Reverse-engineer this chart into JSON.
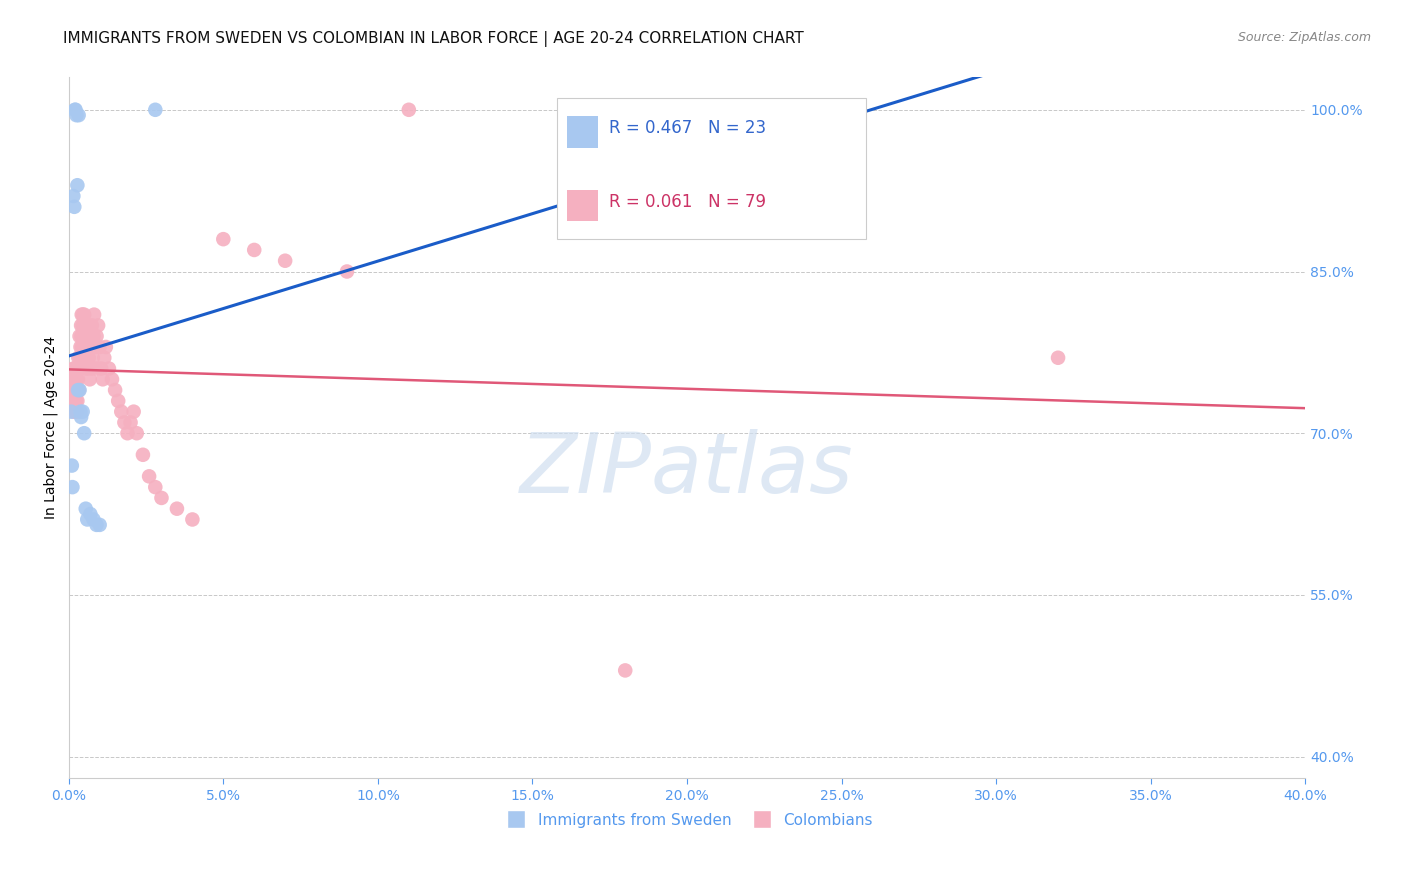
{
  "title": "IMMIGRANTS FROM SWEDEN VS COLOMBIAN IN LABOR FORCE | AGE 20-24 CORRELATION CHART",
  "source": "Source: ZipAtlas.com",
  "ylabel": "In Labor Force | Age 20-24",
  "xlim": [
    0.0,
    0.4
  ],
  "ylim": [
    0.38,
    1.03
  ],
  "yticks": [
    0.4,
    0.55,
    0.7,
    0.85,
    1.0
  ],
  "xticks": [
    0.0,
    0.05,
    0.1,
    0.15,
    0.2,
    0.25,
    0.3,
    0.35,
    0.4
  ],
  "sweden_R": 0.467,
  "sweden_N": 23,
  "colombia_R": 0.061,
  "colombia_N": 79,
  "sweden_color": "#a8c8f0",
  "colombia_color": "#f5b0c0",
  "sweden_line_color": "#1a5cc8",
  "colombia_line_color": "#e05878",
  "sweden_x": [
    0.0008,
    0.001,
    0.0012,
    0.0015,
    0.0018,
    0.002,
    0.0022,
    0.0025,
    0.0028,
    0.003,
    0.0032,
    0.0035,
    0.0038,
    0.004,
    0.0045,
    0.005,
    0.0055,
    0.006,
    0.007,
    0.008,
    0.009,
    0.01,
    0.028
  ],
  "sweden_y": [
    0.72,
    0.67,
    0.65,
    0.92,
    0.91,
    1.0,
    1.0,
    0.995,
    0.93,
    0.74,
    0.995,
    0.74,
    0.72,
    0.715,
    0.72,
    0.7,
    0.63,
    0.62,
    0.625,
    0.62,
    0.615,
    0.615,
    1.0
  ],
  "colombia_x": [
    0.001,
    0.0012,
    0.0014,
    0.0015,
    0.0016,
    0.0018,
    0.0019,
    0.002,
    0.0021,
    0.0022,
    0.0023,
    0.0024,
    0.0025,
    0.0026,
    0.0027,
    0.0028,
    0.003,
    0.0031,
    0.0032,
    0.0033,
    0.0035,
    0.0036,
    0.0037,
    0.0038,
    0.004,
    0.0041,
    0.0042,
    0.0043,
    0.0045,
    0.0046,
    0.0047,
    0.0048,
    0.005,
    0.0052,
    0.0054,
    0.0056,
    0.0058,
    0.006,
    0.0062,
    0.0065,
    0.0068,
    0.007,
    0.0072,
    0.0075,
    0.0078,
    0.008,
    0.0082,
    0.0085,
    0.0088,
    0.009,
    0.0095,
    0.01,
    0.0105,
    0.011,
    0.0115,
    0.012,
    0.013,
    0.014,
    0.015,
    0.016,
    0.017,
    0.018,
    0.019,
    0.02,
    0.021,
    0.022,
    0.024,
    0.026,
    0.028,
    0.03,
    0.035,
    0.04,
    0.05,
    0.06,
    0.07,
    0.09,
    0.11,
    0.18,
    0.32
  ],
  "colombia_y": [
    0.74,
    0.75,
    0.73,
    0.76,
    0.72,
    0.74,
    0.73,
    0.75,
    0.76,
    0.72,
    0.74,
    0.73,
    0.76,
    0.75,
    0.72,
    0.73,
    0.75,
    0.77,
    0.76,
    0.74,
    0.79,
    0.77,
    0.76,
    0.78,
    0.8,
    0.79,
    0.81,
    0.78,
    0.8,
    0.81,
    0.79,
    0.77,
    0.81,
    0.8,
    0.79,
    0.77,
    0.76,
    0.78,
    0.8,
    0.77,
    0.75,
    0.78,
    0.76,
    0.8,
    0.77,
    0.79,
    0.81,
    0.78,
    0.76,
    0.79,
    0.8,
    0.78,
    0.76,
    0.75,
    0.77,
    0.78,
    0.76,
    0.75,
    0.74,
    0.73,
    0.72,
    0.71,
    0.7,
    0.71,
    0.72,
    0.7,
    0.68,
    0.66,
    0.65,
    0.64,
    0.63,
    0.62,
    0.88,
    0.87,
    0.86,
    0.85,
    1.0,
    0.48,
    0.77
  ],
  "title_fontsize": 11,
  "axis_label_fontsize": 10,
  "tick_fontsize": 10,
  "legend_fontsize": 12,
  "source_fontsize": 9,
  "background_color": "#ffffff",
  "grid_color": "#c8c8c8",
  "watermark_text": "ZIPatlas",
  "watermark_color": "#d0dff0"
}
